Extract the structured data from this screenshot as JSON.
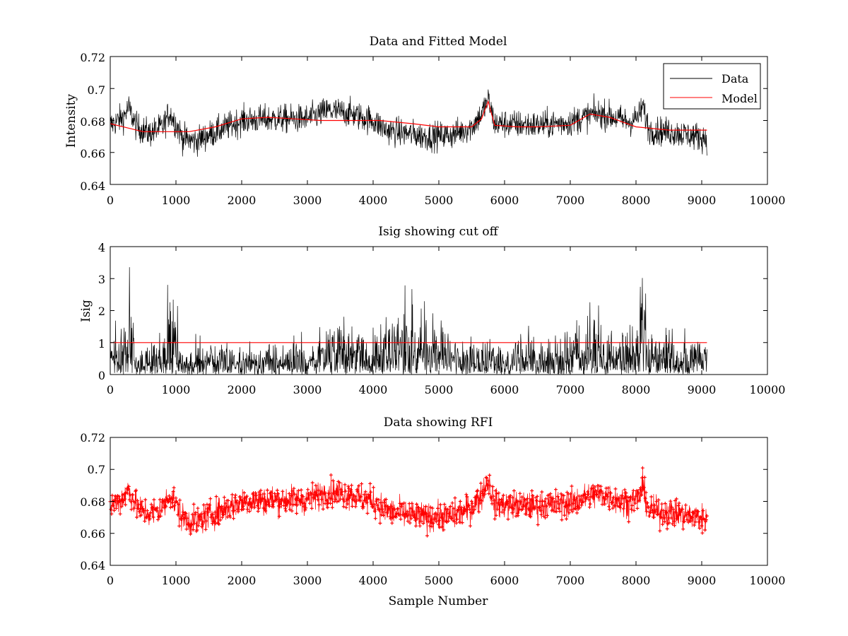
{
  "chart_data": [
    {
      "type": "line",
      "title": "Data and Fitted Model",
      "xlabel": "",
      "ylabel": "Intensity",
      "xlim": [
        0,
        10000
      ],
      "ylim": [
        0.64,
        0.72
      ],
      "xticks": [
        "0",
        "1000",
        "2000",
        "3000",
        "4000",
        "5000",
        "6000",
        "7000",
        "8000",
        "9000",
        "10000"
      ],
      "yticks": [
        "0.64",
        "0.66",
        "0.68",
        "0.7",
        "0.72"
      ],
      "grid": false,
      "legend_position": "top-right",
      "series": [
        {
          "name": "Data",
          "color": "#000000",
          "style": "noisy-line",
          "x_range": [
            0,
            9080
          ],
          "center": [
            [
              0,
              0.677
            ],
            [
              200,
              0.682
            ],
            [
              280,
              0.688
            ],
            [
              400,
              0.676
            ],
            [
              600,
              0.672
            ],
            [
              800,
              0.676
            ],
            [
              900,
              0.685
            ],
            [
              1000,
              0.678
            ],
            [
              1100,
              0.669
            ],
            [
              1300,
              0.667
            ],
            [
              1500,
              0.671
            ],
            [
              2000,
              0.68
            ],
            [
              2500,
              0.681
            ],
            [
              3000,
              0.681
            ],
            [
              3300,
              0.686
            ],
            [
              3600,
              0.685
            ],
            [
              4000,
              0.68
            ],
            [
              4200,
              0.674
            ],
            [
              4800,
              0.67
            ],
            [
              5200,
              0.671
            ],
            [
              5500,
              0.676
            ],
            [
              5650,
              0.684
            ],
            [
              5750,
              0.693
            ],
            [
              5850,
              0.678
            ],
            [
              6000,
              0.678
            ],
            [
              6500,
              0.677
            ],
            [
              7000,
              0.679
            ],
            [
              7350,
              0.684
            ],
            [
              7500,
              0.684
            ],
            [
              7900,
              0.679
            ],
            [
              8050,
              0.683
            ],
            [
              8100,
              0.689
            ],
            [
              8200,
              0.674
            ],
            [
              8500,
              0.673
            ],
            [
              9080,
              0.669
            ]
          ],
          "noise": 0.006
        },
        {
          "name": "Model",
          "color": "#ff0000",
          "style": "line",
          "points": [
            [
              0,
              0.678
            ],
            [
              300,
              0.675
            ],
            [
              500,
              0.673
            ],
            [
              900,
              0.673
            ],
            [
              1200,
              0.673
            ],
            [
              1600,
              0.676
            ],
            [
              2000,
              0.681
            ],
            [
              2400,
              0.682
            ],
            [
              2800,
              0.681
            ],
            [
              3200,
              0.68
            ],
            [
              3700,
              0.68
            ],
            [
              4100,
              0.68
            ],
            [
              4600,
              0.678
            ],
            [
              5000,
              0.676
            ],
            [
              5500,
              0.676
            ],
            [
              5650,
              0.681
            ],
            [
              5750,
              0.692
            ],
            [
              5850,
              0.677
            ],
            [
              6200,
              0.676
            ],
            [
              6500,
              0.676
            ],
            [
              7000,
              0.677
            ],
            [
              7300,
              0.684
            ],
            [
              7600,
              0.682
            ],
            [
              8000,
              0.676
            ],
            [
              8500,
              0.674
            ],
            [
              9080,
              0.674
            ]
          ]
        }
      ]
    },
    {
      "type": "line",
      "title": "Isig showing cut off",
      "xlabel": "",
      "ylabel": "Isig",
      "xlim": [
        0,
        10000
      ],
      "ylim": [
        0,
        4
      ],
      "xticks": [
        "0",
        "1000",
        "2000",
        "3000",
        "4000",
        "5000",
        "6000",
        "7000",
        "8000",
        "9000",
        "10000"
      ],
      "yticks": [
        "0",
        "1",
        "2",
        "3",
        "4"
      ],
      "grid": false,
      "series": [
        {
          "color": "#000000",
          "style": "abs-noise",
          "x_range": [
            0,
            9080
          ],
          "scale": [
            [
              0,
              0.65
            ],
            [
              300,
              1.4
            ],
            [
              400,
              0.35
            ],
            [
              800,
              0.55
            ],
            [
              950,
              1.5
            ],
            [
              1100,
              0.45
            ],
            [
              3000,
              0.5
            ],
            [
              3400,
              0.95
            ],
            [
              3900,
              0.6
            ],
            [
              4700,
              1.25
            ],
            [
              5200,
              0.55
            ],
            [
              6800,
              0.5
            ],
            [
              7200,
              0.85
            ],
            [
              7700,
              0.6
            ],
            [
              8000,
              0.8
            ],
            [
              8080,
              1.9
            ],
            [
              8200,
              0.55
            ],
            [
              9080,
              0.55
            ]
          ]
        },
        {
          "name": "cut off",
          "color": "#ff0000",
          "style": "line",
          "points": [
            [
              0,
              1
            ],
            [
              9080,
              1
            ]
          ]
        }
      ]
    },
    {
      "type": "line",
      "title": "Data showing RFI",
      "xlabel": "Sample Number",
      "ylabel": "",
      "xlim": [
        0,
        10000
      ],
      "ylim": [
        0.64,
        0.72
      ],
      "xticks": [
        "0",
        "1000",
        "2000",
        "3000",
        "4000",
        "5000",
        "6000",
        "7000",
        "8000",
        "9000",
        "10000"
      ],
      "yticks": [
        "0.64",
        "0.66",
        "0.68",
        "0.7",
        "0.72"
      ],
      "grid": false,
      "series": [
        {
          "color": "#ff0000",
          "style": "noisy-line-markers",
          "marker": "plus",
          "x_range": [
            0,
            9080
          ],
          "center": [
            [
              0,
              0.677
            ],
            [
              200,
              0.682
            ],
            [
              280,
              0.688
            ],
            [
              400,
              0.676
            ],
            [
              600,
              0.672
            ],
            [
              800,
              0.676
            ],
            [
              900,
              0.685
            ],
            [
              1000,
              0.678
            ],
            [
              1100,
              0.669
            ],
            [
              1300,
              0.667
            ],
            [
              1500,
              0.671
            ],
            [
              2000,
              0.68
            ],
            [
              2500,
              0.681
            ],
            [
              3000,
              0.681
            ],
            [
              3300,
              0.686
            ],
            [
              3600,
              0.685
            ],
            [
              4000,
              0.68
            ],
            [
              4200,
              0.674
            ],
            [
              4800,
              0.67
            ],
            [
              5200,
              0.671
            ],
            [
              5500,
              0.676
            ],
            [
              5650,
              0.684
            ],
            [
              5750,
              0.693
            ],
            [
              5850,
              0.678
            ],
            [
              6000,
              0.678
            ],
            [
              6500,
              0.677
            ],
            [
              7000,
              0.679
            ],
            [
              7350,
              0.684
            ],
            [
              7500,
              0.684
            ],
            [
              7900,
              0.679
            ],
            [
              8050,
              0.683
            ],
            [
              8100,
              0.689
            ],
            [
              8200,
              0.674
            ],
            [
              8500,
              0.673
            ],
            [
              9080,
              0.669
            ]
          ],
          "noise": 0.006
        }
      ]
    }
  ]
}
